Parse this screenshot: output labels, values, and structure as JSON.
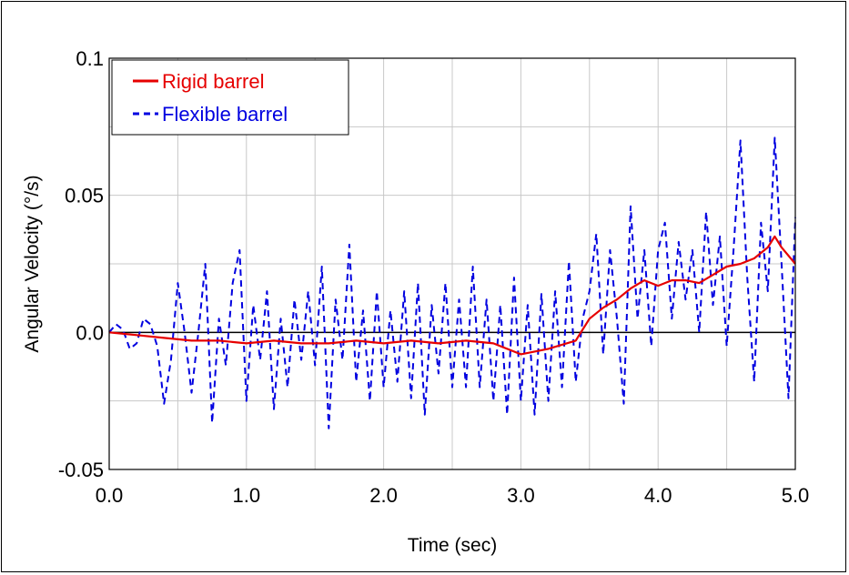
{
  "chart_data": {
    "type": "line",
    "title": "",
    "xlabel": "Time (sec)",
    "ylabel": "Angular Velocity (°/s)",
    "xlim": [
      0.0,
      5.0
    ],
    "ylim": [
      -0.05,
      0.1
    ],
    "x_ticks": [
      "0.0",
      "1.0",
      "2.0",
      "3.0",
      "4.0",
      "5.0"
    ],
    "y_ticks": [
      "0.1",
      "0.05",
      "0.0",
      "-0.05"
    ],
    "grid": true,
    "zero_line": true,
    "legend_position": "top-left",
    "series": [
      {
        "name": "Rigid barrel",
        "color": "#e60000",
        "style": "solid",
        "points": [
          [
            0.0,
            0.0
          ],
          [
            0.2,
            -0.001
          ],
          [
            0.4,
            -0.002
          ],
          [
            0.6,
            -0.003
          ],
          [
            0.8,
            -0.003
          ],
          [
            1.0,
            -0.004
          ],
          [
            1.2,
            -0.003
          ],
          [
            1.4,
            -0.004
          ],
          [
            1.6,
            -0.004
          ],
          [
            1.8,
            -0.003
          ],
          [
            2.0,
            -0.004
          ],
          [
            2.2,
            -0.003
          ],
          [
            2.4,
            -0.004
          ],
          [
            2.6,
            -0.003
          ],
          [
            2.8,
            -0.004
          ],
          [
            3.0,
            -0.008
          ],
          [
            3.2,
            -0.006
          ],
          [
            3.4,
            -0.003
          ],
          [
            3.5,
            0.005
          ],
          [
            3.6,
            0.009
          ],
          [
            3.7,
            0.012
          ],
          [
            3.8,
            0.016
          ],
          [
            3.9,
            0.019
          ],
          [
            4.0,
            0.017
          ],
          [
            4.1,
            0.019
          ],
          [
            4.2,
            0.019
          ],
          [
            4.3,
            0.018
          ],
          [
            4.4,
            0.021
          ],
          [
            4.5,
            0.024
          ],
          [
            4.6,
            0.025
          ],
          [
            4.7,
            0.027
          ],
          [
            4.8,
            0.031
          ],
          [
            4.85,
            0.035
          ],
          [
            4.9,
            0.031
          ],
          [
            5.0,
            0.025
          ]
        ]
      },
      {
        "name": "Flexible barrel",
        "color": "#0000e0",
        "style": "dashed",
        "points": [
          [
            0.0,
            0.0
          ],
          [
            0.05,
            0.003
          ],
          [
            0.1,
            0.001
          ],
          [
            0.15,
            -0.006
          ],
          [
            0.2,
            -0.004
          ],
          [
            0.25,
            0.005
          ],
          [
            0.3,
            0.003
          ],
          [
            0.35,
            -0.005
          ],
          [
            0.4,
            -0.026
          ],
          [
            0.45,
            -0.01
          ],
          [
            0.5,
            0.018
          ],
          [
            0.55,
            0.0
          ],
          [
            0.6,
            -0.022
          ],
          [
            0.65,
            0.0
          ],
          [
            0.7,
            0.025
          ],
          [
            0.75,
            -0.033
          ],
          [
            0.8,
            0.005
          ],
          [
            0.85,
            -0.012
          ],
          [
            0.9,
            0.018
          ],
          [
            0.95,
            0.03
          ],
          [
            1.0,
            -0.025
          ],
          [
            1.05,
            0.01
          ],
          [
            1.1,
            -0.01
          ],
          [
            1.15,
            0.015
          ],
          [
            1.2,
            -0.028
          ],
          [
            1.25,
            0.005
          ],
          [
            1.3,
            -0.02
          ],
          [
            1.35,
            0.012
          ],
          [
            1.4,
            -0.01
          ],
          [
            1.45,
            0.015
          ],
          [
            1.5,
            -0.012
          ],
          [
            1.55,
            0.024
          ],
          [
            1.6,
            -0.035
          ],
          [
            1.65,
            0.012
          ],
          [
            1.7,
            -0.01
          ],
          [
            1.75,
            0.032
          ],
          [
            1.8,
            -0.018
          ],
          [
            1.85,
            0.008
          ],
          [
            1.9,
            -0.025
          ],
          [
            1.95,
            0.015
          ],
          [
            2.0,
            -0.02
          ],
          [
            2.05,
            0.008
          ],
          [
            2.1,
            -0.018
          ],
          [
            2.15,
            0.015
          ],
          [
            2.2,
            -0.024
          ],
          [
            2.25,
            0.018
          ],
          [
            2.3,
            -0.03
          ],
          [
            2.35,
            0.01
          ],
          [
            2.4,
            -0.015
          ],
          [
            2.45,
            0.018
          ],
          [
            2.5,
            -0.02
          ],
          [
            2.55,
            0.012
          ],
          [
            2.6,
            -0.02
          ],
          [
            2.65,
            0.024
          ],
          [
            2.7,
            -0.02
          ],
          [
            2.75,
            0.012
          ],
          [
            2.8,
            -0.025
          ],
          [
            2.85,
            0.01
          ],
          [
            2.9,
            -0.03
          ],
          [
            2.95,
            0.02
          ],
          [
            3.0,
            -0.025
          ],
          [
            3.05,
            0.01
          ],
          [
            3.1,
            -0.03
          ],
          [
            3.15,
            0.014
          ],
          [
            3.2,
            -0.025
          ],
          [
            3.25,
            0.015
          ],
          [
            3.3,
            -0.02
          ],
          [
            3.35,
            0.026
          ],
          [
            3.4,
            -0.018
          ],
          [
            3.45,
            0.005
          ],
          [
            3.5,
            0.015
          ],
          [
            3.55,
            0.036
          ],
          [
            3.6,
            -0.008
          ],
          [
            3.65,
            0.03
          ],
          [
            3.7,
            0.005
          ],
          [
            3.75,
            -0.026
          ],
          [
            3.8,
            0.046
          ],
          [
            3.85,
            0.005
          ],
          [
            3.9,
            0.03
          ],
          [
            3.95,
            -0.005
          ],
          [
            4.0,
            0.03
          ],
          [
            4.05,
            0.04
          ],
          [
            4.1,
            0.005
          ],
          [
            4.15,
            0.033
          ],
          [
            4.2,
            0.012
          ],
          [
            4.25,
            0.03
          ],
          [
            4.3,
            0.0
          ],
          [
            4.35,
            0.044
          ],
          [
            4.4,
            0.01
          ],
          [
            4.45,
            0.035
          ],
          [
            4.5,
            -0.005
          ],
          [
            4.55,
            0.03
          ],
          [
            4.6,
            0.07
          ],
          [
            4.65,
            0.02
          ],
          [
            4.7,
            -0.018
          ],
          [
            4.75,
            0.04
          ],
          [
            4.8,
            0.015
          ],
          [
            4.85,
            0.071
          ],
          [
            4.9,
            0.025
          ],
          [
            4.95,
            -0.024
          ],
          [
            5.0,
            0.042
          ]
        ]
      }
    ]
  }
}
